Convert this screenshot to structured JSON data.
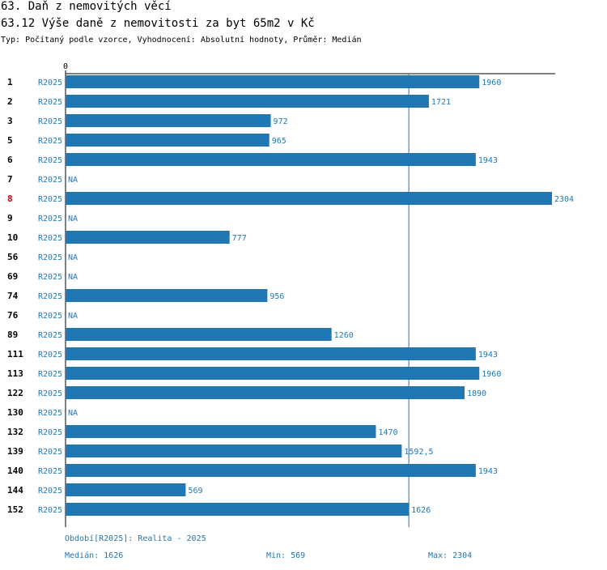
{
  "header": {
    "title": "63. Daň z nemovitých věcí",
    "subtitle": "63.12 Výše daně z nemovitosti za byt 65m2 v Kč",
    "type_line": "Typ: Počítaný podle vzorce, Vyhodnocení: Absolutní hodnoty, Průměr: Medián"
  },
  "colors": {
    "bar": "#1f77b4",
    "text": "#1f77b4",
    "highlight": "#d40000"
  },
  "chart_data": {
    "type": "bar",
    "orientation": "horizontal",
    "x_tick_labels": [
      "0"
    ],
    "xlim": [
      0,
      2304
    ],
    "median_line": 1626,
    "highlight_category": "8",
    "rows": [
      {
        "id": "1",
        "period": "R2025",
        "value": 1960,
        "label": "1960"
      },
      {
        "id": "2",
        "period": "R2025",
        "value": 1721,
        "label": "1721"
      },
      {
        "id": "3",
        "period": "R2025",
        "value": 972,
        "label": "972"
      },
      {
        "id": "5",
        "period": "R2025",
        "value": 965,
        "label": "965"
      },
      {
        "id": "6",
        "period": "R2025",
        "value": 1943,
        "label": "1943"
      },
      {
        "id": "7",
        "period": "R2025",
        "value": null,
        "label": "NA"
      },
      {
        "id": "8",
        "period": "R2025",
        "value": 2304,
        "label": "2304"
      },
      {
        "id": "9",
        "period": "R2025",
        "value": null,
        "label": "NA"
      },
      {
        "id": "10",
        "period": "R2025",
        "value": 777,
        "label": "777"
      },
      {
        "id": "56",
        "period": "R2025",
        "value": null,
        "label": "NA"
      },
      {
        "id": "69",
        "period": "R2025",
        "value": null,
        "label": "NA"
      },
      {
        "id": "74",
        "period": "R2025",
        "value": 956,
        "label": "956"
      },
      {
        "id": "76",
        "period": "R2025",
        "value": null,
        "label": "NA"
      },
      {
        "id": "89",
        "period": "R2025",
        "value": 1260,
        "label": "1260"
      },
      {
        "id": "111",
        "period": "R2025",
        "value": 1943,
        "label": "1943"
      },
      {
        "id": "113",
        "period": "R2025",
        "value": 1960,
        "label": "1960"
      },
      {
        "id": "122",
        "period": "R2025",
        "value": 1890,
        "label": "1890"
      },
      {
        "id": "130",
        "period": "R2025",
        "value": null,
        "label": "NA"
      },
      {
        "id": "132",
        "period": "R2025",
        "value": 1470,
        "label": "1470"
      },
      {
        "id": "139",
        "period": "R2025",
        "value": 1592.5,
        "label": "1592,5"
      },
      {
        "id": "140",
        "period": "R2025",
        "value": 1943,
        "label": "1943"
      },
      {
        "id": "144",
        "period": "R2025",
        "value": 569,
        "label": "569"
      },
      {
        "id": "152",
        "period": "R2025",
        "value": 1626,
        "label": "1626"
      }
    ]
  },
  "footer": {
    "period": "Období[R2025]: Realita - 2025",
    "median": "Medián: 1626",
    "min": "Min: 569",
    "max": "Max: 2304"
  }
}
